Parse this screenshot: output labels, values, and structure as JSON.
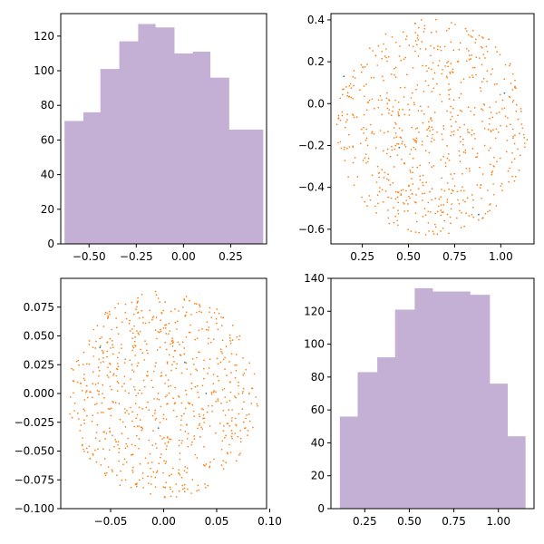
{
  "chart_data": [
    {
      "type": "bar",
      "panel": "top-left",
      "title": "",
      "xlabel": "",
      "ylabel": "",
      "bar_color": "#c5b0d5",
      "xlim": [
        -0.65,
        0.44
      ],
      "ylim": [
        0,
        133
      ],
      "bins": [
        {
          "x0": -0.63,
          "x1": -0.53,
          "count": 71
        },
        {
          "x0": -0.53,
          "x1": -0.44,
          "count": 76
        },
        {
          "x0": -0.44,
          "x1": -0.34,
          "count": 101
        },
        {
          "x0": -0.34,
          "x1": -0.24,
          "count": 117
        },
        {
          "x0": -0.24,
          "x1": -0.15,
          "count": 127
        },
        {
          "x0": -0.15,
          "x1": -0.05,
          "count": 125
        },
        {
          "x0": -0.05,
          "x1": 0.05,
          "count": 110
        },
        {
          "x0": 0.05,
          "x1": 0.14,
          "count": 111
        },
        {
          "x0": 0.14,
          "x1": 0.24,
          "count": 96
        },
        {
          "x0": 0.24,
          "x1": 0.42,
          "count": 66
        }
      ],
      "xticks": [
        -0.5,
        -0.25,
        0.0,
        0.25
      ],
      "xtick_labels": [
        "−0.50",
        "−0.25",
        "0.00",
        "0.25"
      ],
      "yticks": [
        0,
        20,
        40,
        60,
        80,
        100,
        120
      ],
      "ytick_labels": [
        "0",
        "20",
        "40",
        "60",
        "80",
        "100",
        "120"
      ]
    },
    {
      "type": "scatter",
      "panel": "top-right",
      "title": "",
      "xlabel": "",
      "ylabel": "",
      "point_color": "#ff7f0e",
      "accent_color": "#1f77b4",
      "xlim": [
        0.08,
        1.18
      ],
      "ylim": [
        -0.67,
        0.43
      ],
      "disc": {
        "cx": 0.63,
        "cy": -0.11,
        "rx": 0.52,
        "ry": 0.52
      },
      "n_points": 700,
      "accent_points": [
        [
          0.15,
          0.13
        ],
        [
          1.02,
          0.05
        ],
        [
          0.45,
          -0.21
        ],
        [
          0.88,
          -0.53
        ]
      ],
      "xticks": [
        0.25,
        0.5,
        0.75,
        1.0
      ],
      "xtick_labels": [
        "0.25",
        "0.50",
        "0.75",
        "1.00"
      ],
      "yticks": [
        -0.6,
        -0.4,
        -0.2,
        0.0,
        0.2,
        0.4
      ],
      "ytick_labels": [
        "−0.6",
        "−0.4",
        "−0.2",
        "0.0",
        "0.2",
        "0.4"
      ]
    },
    {
      "type": "scatter",
      "panel": "bottom-left",
      "title": "",
      "xlabel": "",
      "ylabel": "",
      "point_color": "#ff7f0e",
      "accent_color": "#1f77b4",
      "xlim": [
        -0.097,
        0.097
      ],
      "ylim": [
        -0.1,
        0.1
      ],
      "disc": {
        "cx": 0.0,
        "cy": -0.001,
        "rx": 0.09,
        "ry": 0.09
      },
      "n_points": 750,
      "accent_points": [
        [
          0.02,
          0.027
        ],
        [
          -0.005,
          -0.03
        ],
        [
          0.04,
          0.0
        ],
        [
          -0.06,
          0.04
        ]
      ],
      "xticks": [
        -0.05,
        0.0,
        0.05,
        0.1
      ],
      "xtick_labels": [
        "−0.05",
        "0.00",
        "0.05",
        "0.10"
      ],
      "yticks": [
        -0.1,
        -0.075,
        -0.05,
        -0.025,
        0.0,
        0.025,
        0.05,
        0.075
      ],
      "ytick_labels": [
        "−0.100",
        "−0.075",
        "−0.050",
        "−0.025",
        "0.000",
        "0.025",
        "0.050",
        "0.075"
      ]
    },
    {
      "type": "bar",
      "panel": "bottom-right",
      "title": "",
      "xlabel": "",
      "ylabel": "",
      "bar_color": "#c5b0d5",
      "xlim": [
        0.06,
        1.2
      ],
      "ylim": [
        0,
        140
      ],
      "bins": [
        {
          "x0": 0.11,
          "x1": 0.21,
          "count": 56
        },
        {
          "x0": 0.21,
          "x1": 0.32,
          "count": 83
        },
        {
          "x0": 0.32,
          "x1": 0.42,
          "count": 92
        },
        {
          "x0": 0.42,
          "x1": 0.53,
          "count": 121
        },
        {
          "x0": 0.53,
          "x1": 0.63,
          "count": 134
        },
        {
          "x0": 0.63,
          "x1": 0.74,
          "count": 132
        },
        {
          "x0": 0.74,
          "x1": 0.84,
          "count": 132
        },
        {
          "x0": 0.84,
          "x1": 0.95,
          "count": 130
        },
        {
          "x0": 0.95,
          "x1": 1.05,
          "count": 76
        },
        {
          "x0": 1.05,
          "x1": 1.15,
          "count": 44
        }
      ],
      "xticks": [
        0.25,
        0.5,
        0.75,
        1.0
      ],
      "xtick_labels": [
        "0.25",
        "0.50",
        "0.75",
        "1.00"
      ],
      "yticks": [
        0,
        20,
        40,
        60,
        80,
        100,
        120,
        140
      ],
      "ytick_labels": [
        "0",
        "20",
        "40",
        "60",
        "80",
        "100",
        "120",
        "140"
      ]
    }
  ]
}
